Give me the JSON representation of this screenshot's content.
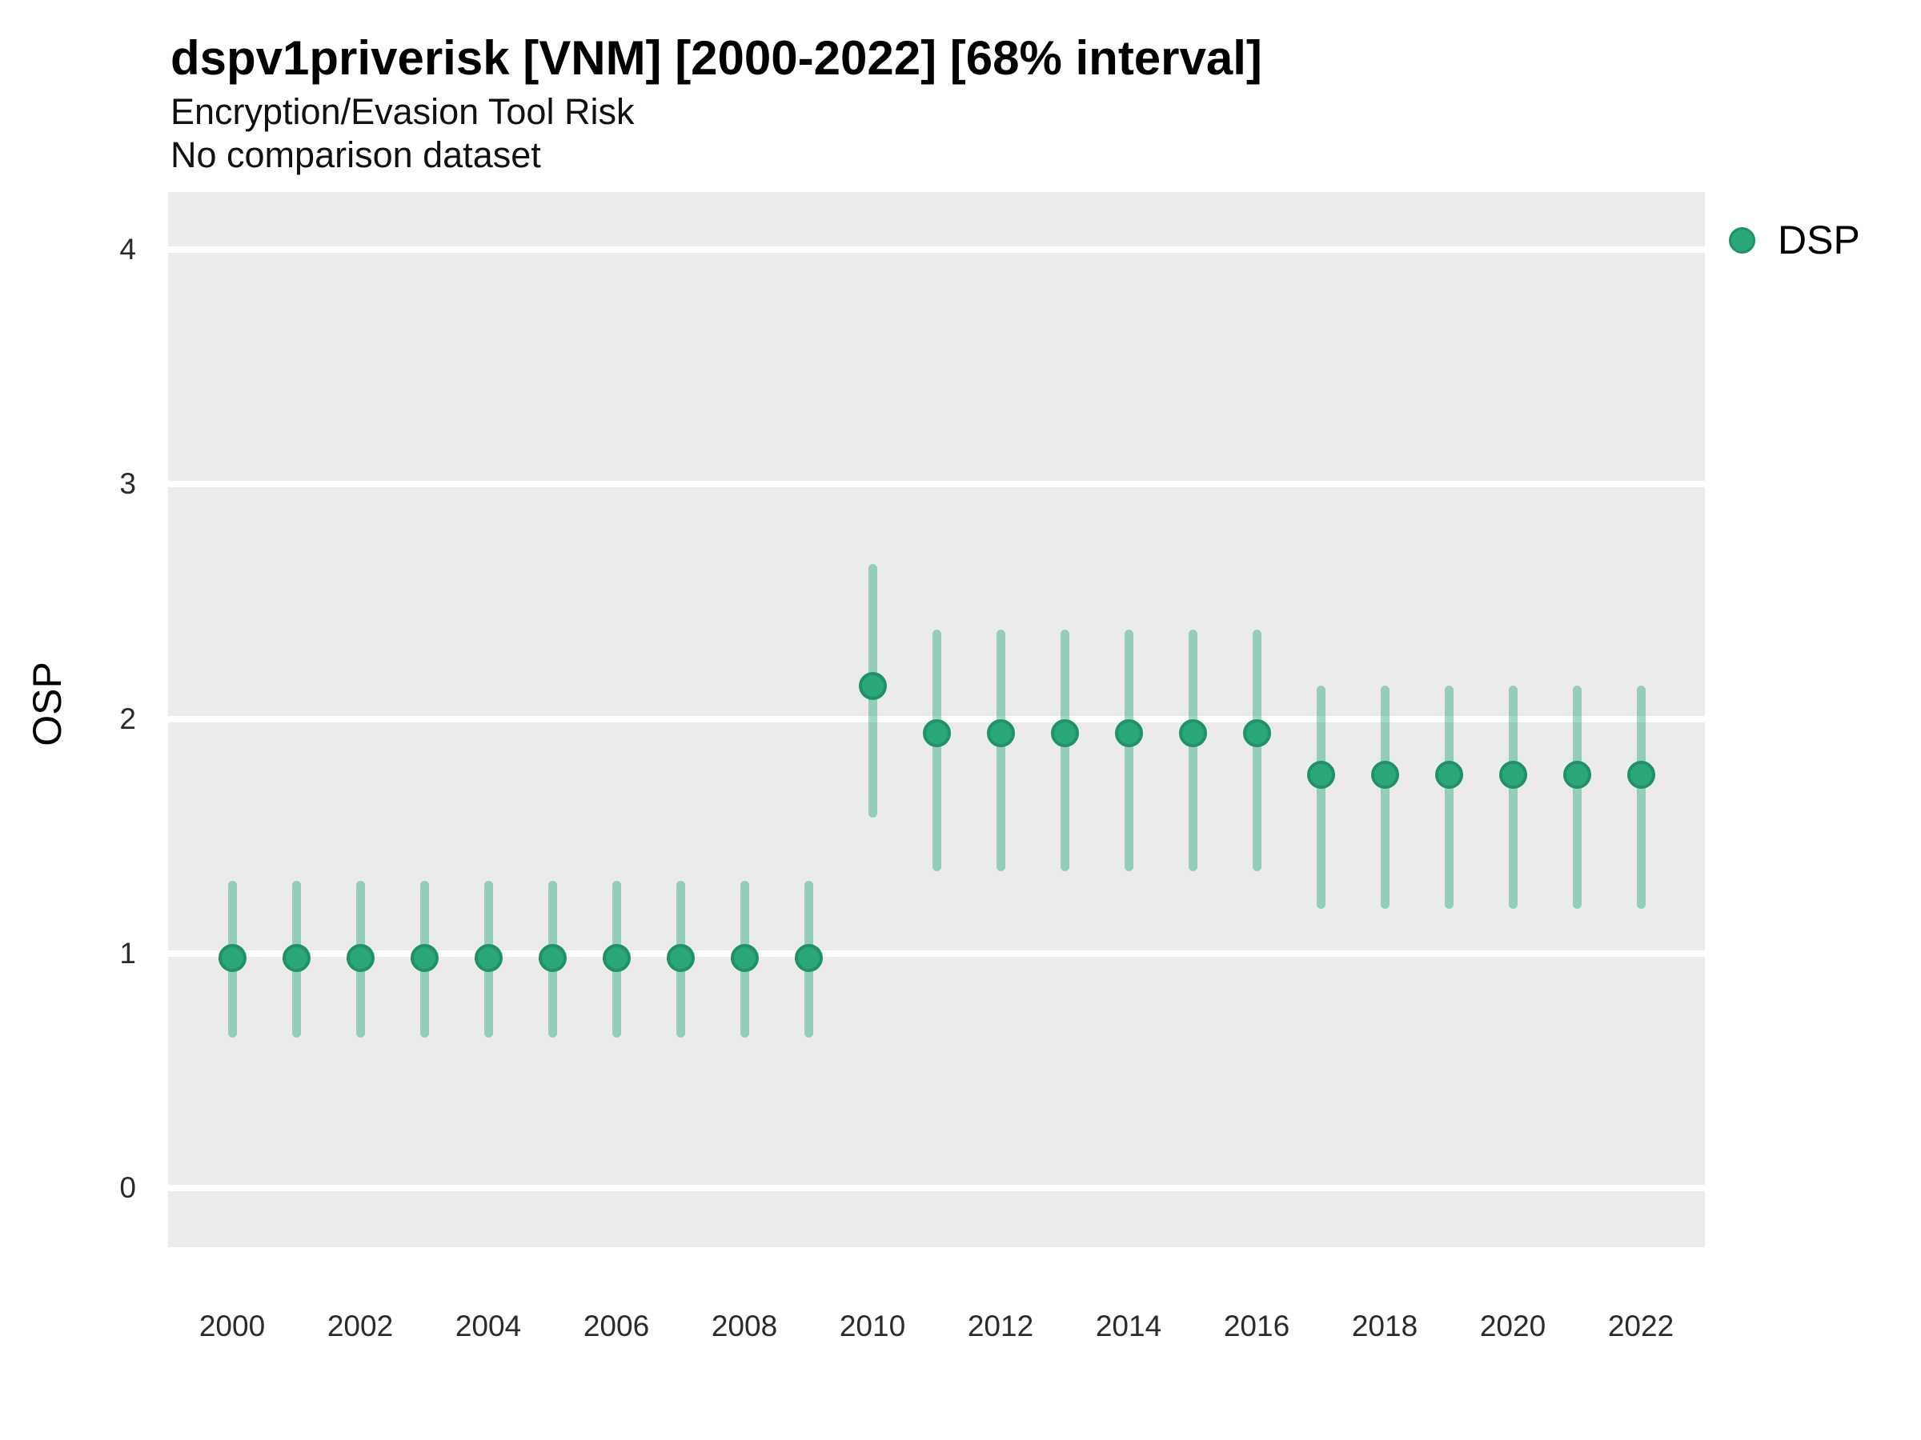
{
  "chart_data": {
    "type": "scatter",
    "subtype": "pointrange-interval",
    "title": "dspv1priverisk [VNM] [2000-2022] [68% interval]",
    "subtitle": "Encryption/Evasion Tool Risk",
    "note": "No comparison dataset",
    "xlabel": "",
    "ylabel": "OSP",
    "ylim": [
      -0.25,
      4.25
    ],
    "y_ticks": [
      0,
      1,
      2,
      3,
      4
    ],
    "x_tick_labels": [
      2000,
      2002,
      2004,
      2006,
      2008,
      2010,
      2012,
      2014,
      2016,
      2018,
      2020,
      2022
    ],
    "grid": "major-horizontal-only",
    "legend": {
      "position": "right",
      "label": "DSP"
    },
    "interval_level": "68%",
    "series": [
      {
        "name": "DSP",
        "points": [
          {
            "year": 2000,
            "est": 0.98,
            "lo": 0.64,
            "hi": 1.31
          },
          {
            "year": 2001,
            "est": 0.98,
            "lo": 0.64,
            "hi": 1.31
          },
          {
            "year": 2002,
            "est": 0.98,
            "lo": 0.64,
            "hi": 1.31
          },
          {
            "year": 2003,
            "est": 0.98,
            "lo": 0.64,
            "hi": 1.31
          },
          {
            "year": 2004,
            "est": 0.98,
            "lo": 0.64,
            "hi": 1.31
          },
          {
            "year": 2005,
            "est": 0.98,
            "lo": 0.64,
            "hi": 1.31
          },
          {
            "year": 2006,
            "est": 0.98,
            "lo": 0.64,
            "hi": 1.31
          },
          {
            "year": 2007,
            "est": 0.98,
            "lo": 0.64,
            "hi": 1.31
          },
          {
            "year": 2008,
            "est": 0.98,
            "lo": 0.64,
            "hi": 1.31
          },
          {
            "year": 2009,
            "est": 0.98,
            "lo": 0.64,
            "hi": 1.31
          },
          {
            "year": 2010,
            "est": 2.14,
            "lo": 1.58,
            "hi": 2.66
          },
          {
            "year": 2011,
            "est": 1.94,
            "lo": 1.35,
            "hi": 2.38
          },
          {
            "year": 2012,
            "est": 1.94,
            "lo": 1.35,
            "hi": 2.38
          },
          {
            "year": 2013,
            "est": 1.94,
            "lo": 1.35,
            "hi": 2.38
          },
          {
            "year": 2014,
            "est": 1.94,
            "lo": 1.35,
            "hi": 2.38
          },
          {
            "year": 2015,
            "est": 1.94,
            "lo": 1.35,
            "hi": 2.38
          },
          {
            "year": 2016,
            "est": 1.94,
            "lo": 1.35,
            "hi": 2.38
          },
          {
            "year": 2017,
            "est": 1.76,
            "lo": 1.19,
            "hi": 2.14
          },
          {
            "year": 2018,
            "est": 1.76,
            "lo": 1.19,
            "hi": 2.14
          },
          {
            "year": 2019,
            "est": 1.76,
            "lo": 1.19,
            "hi": 2.14
          },
          {
            "year": 2020,
            "est": 1.76,
            "lo": 1.19,
            "hi": 2.14
          },
          {
            "year": 2021,
            "est": 1.76,
            "lo": 1.19,
            "hi": 2.14
          },
          {
            "year": 2022,
            "est": 1.76,
            "lo": 1.19,
            "hi": 2.14
          }
        ]
      }
    ],
    "colors": {
      "point": "#2aa87c",
      "point_border": "#1f9266",
      "interval_opacity": "0.45",
      "panel": "#ebebeb",
      "grid": "#ffffff"
    }
  }
}
